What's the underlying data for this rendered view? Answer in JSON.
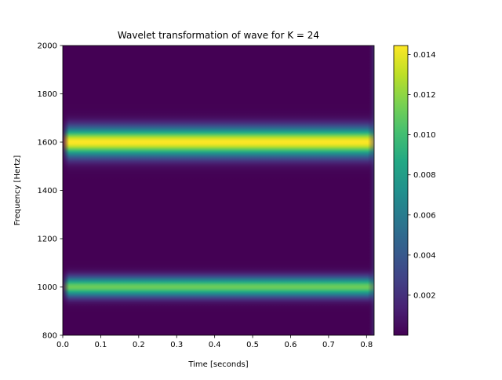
{
  "chart_data": {
    "type": "heatmap",
    "title": "Wavelet transformation of wave for K = 24",
    "xlabel": "Time [seconds]",
    "ylabel": "Frequency [Hertz]",
    "xlim": [
      0.0,
      0.82
    ],
    "ylim": [
      800,
      2000
    ],
    "xticks": [
      0.0,
      0.1,
      0.2,
      0.3,
      0.4,
      0.5,
      0.6,
      0.7,
      0.8
    ],
    "xtick_labels": [
      "0.0",
      "0.1",
      "0.2",
      "0.3",
      "0.4",
      "0.5",
      "0.6",
      "0.7",
      "0.8"
    ],
    "yticks": [
      800,
      1000,
      1200,
      1400,
      1600,
      1800,
      2000
    ],
    "ytick_labels": [
      "800",
      "1000",
      "1200",
      "1400",
      "1600",
      "1800",
      "2000"
    ],
    "colormap": "viridis",
    "colorbar": {
      "range": [
        0.0,
        0.01445
      ],
      "ticks": [
        0.002,
        0.004,
        0.006,
        0.008,
        0.01,
        0.012,
        0.014
      ],
      "tick_labels": [
        "0.002",
        "0.004",
        "0.006",
        "0.008",
        "0.010",
        "0.012",
        "0.014"
      ]
    },
    "bands": [
      {
        "name": "1600 Hz component",
        "center_hz": 1600,
        "sigma_hz": 40,
        "peak_value": 0.01445
      },
      {
        "name": "1000 Hz component",
        "center_hz": 1000,
        "sigma_hz": 28,
        "peak_value": 0.0112
      }
    ],
    "edge_effect": {
      "time_start": 0.0,
      "time_end": 0.82,
      "width_s": 0.012
    }
  }
}
